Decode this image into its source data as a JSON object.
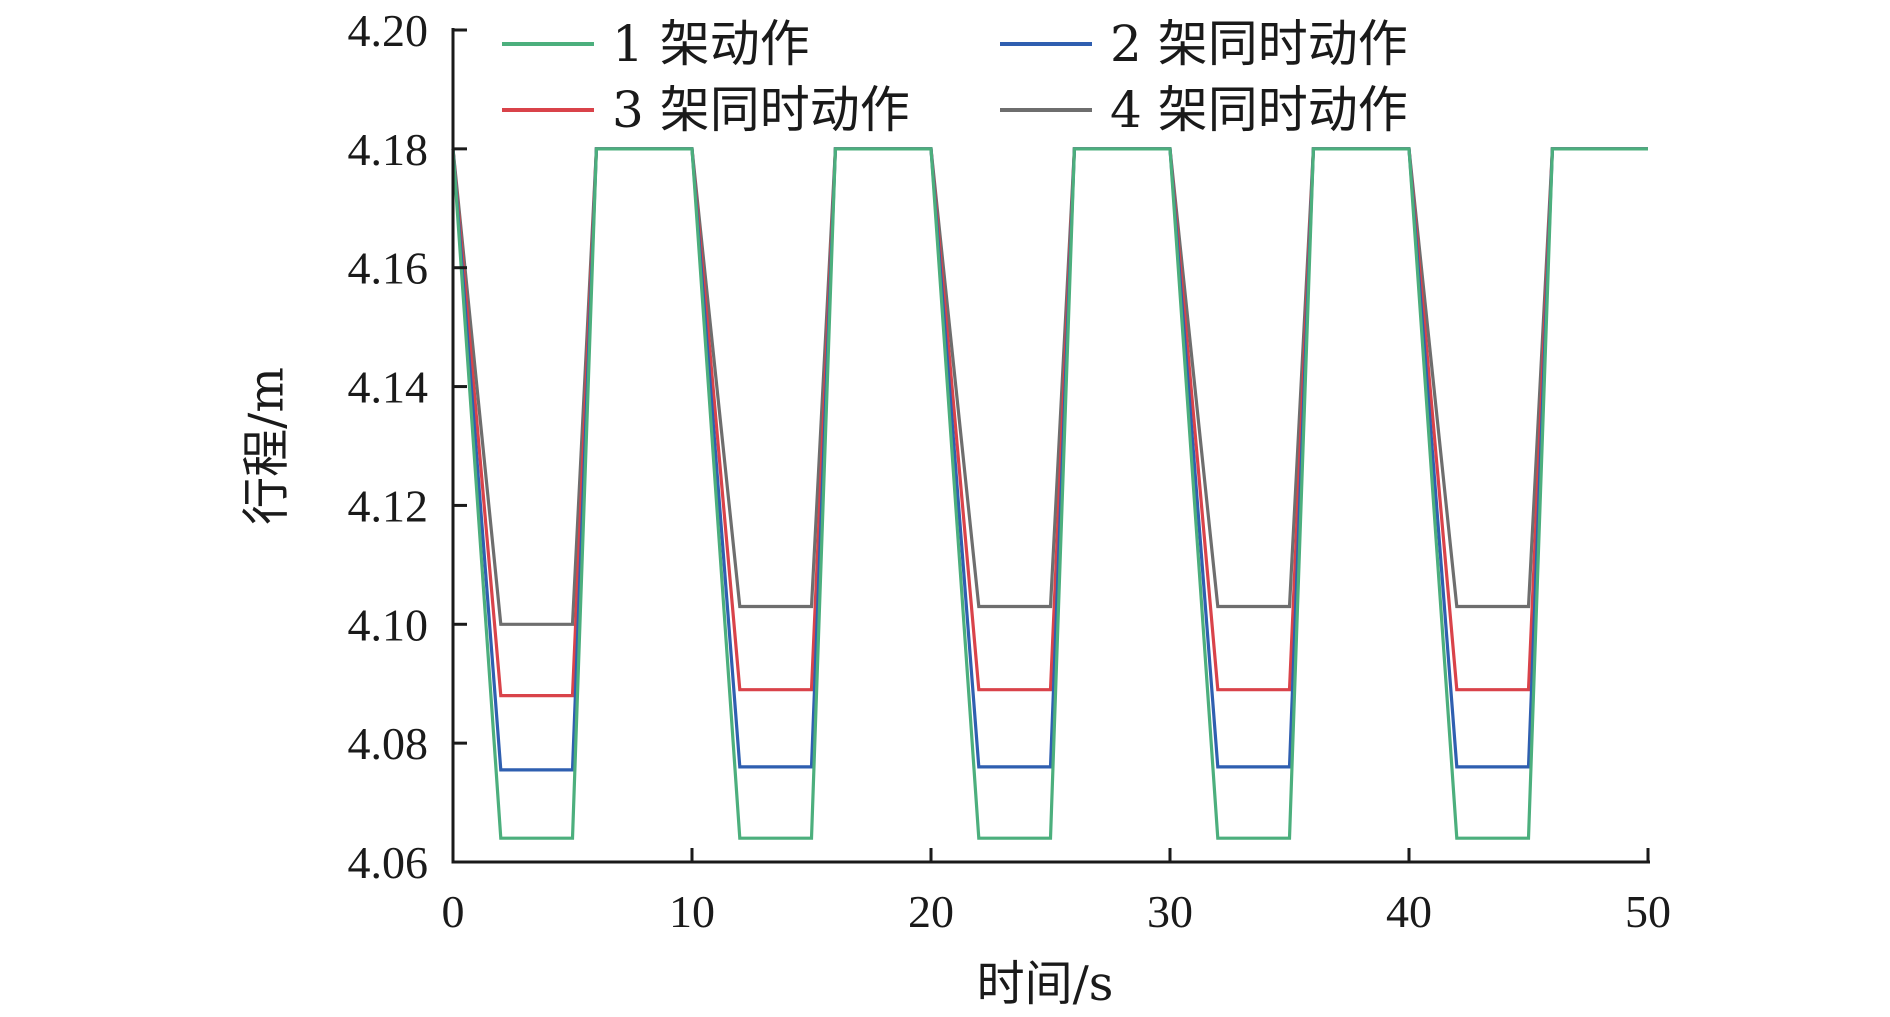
{
  "chart_data": {
    "type": "line",
    "xlabel": "时间/s",
    "ylabel": "行程/m",
    "xlim": [
      0,
      50
    ],
    "ylim": [
      4.06,
      4.2
    ],
    "x_ticks": [
      "0",
      "10",
      "20",
      "30",
      "40",
      "50"
    ],
    "y_ticks": [
      "4.06",
      "4.08",
      "4.10",
      "4.12",
      "4.14",
      "4.16",
      "4.18",
      "4.20"
    ],
    "grid": false,
    "legend_position": "top",
    "series": [
      {
        "name": "1 架动作",
        "color": "#4caf7d",
        "x": [
          0,
          2,
          5,
          6,
          10,
          12,
          15,
          16,
          20,
          22,
          25,
          26,
          30,
          32,
          35,
          36,
          40,
          42,
          45,
          46,
          50
        ],
        "y": [
          4.18,
          4.064,
          4.064,
          4.18,
          4.18,
          4.064,
          4.064,
          4.18,
          4.18,
          4.064,
          4.064,
          4.18,
          4.18,
          4.064,
          4.064,
          4.18,
          4.18,
          4.064,
          4.064,
          4.18,
          4.18
        ]
      },
      {
        "name": "2 架同时动作",
        "color": "#2f5fb0",
        "x": [
          0,
          2,
          5,
          6,
          10,
          12,
          15,
          16,
          20,
          22,
          25,
          26,
          30,
          32,
          35,
          36,
          40,
          42,
          45,
          46,
          50
        ],
        "y": [
          4.18,
          4.0755,
          4.0755,
          4.18,
          4.18,
          4.076,
          4.076,
          4.18,
          4.18,
          4.076,
          4.076,
          4.18,
          4.18,
          4.076,
          4.076,
          4.18,
          4.18,
          4.076,
          4.076,
          4.18,
          4.18
        ]
      },
      {
        "name": "3 架同时动作",
        "color": "#d9434a",
        "x": [
          0,
          2,
          5,
          6,
          10,
          12,
          15,
          16,
          20,
          22,
          25,
          26,
          30,
          32,
          35,
          36,
          40,
          42,
          45,
          46,
          50
        ],
        "y": [
          4.18,
          4.088,
          4.088,
          4.18,
          4.18,
          4.089,
          4.089,
          4.18,
          4.18,
          4.089,
          4.089,
          4.18,
          4.18,
          4.089,
          4.089,
          4.18,
          4.18,
          4.089,
          4.089,
          4.18,
          4.18
        ]
      },
      {
        "name": "4 架同时动作",
        "color": "#6e6e6e",
        "x": [
          0,
          2,
          5,
          6,
          10,
          12,
          15,
          16,
          20,
          22,
          25,
          26,
          30,
          32,
          35,
          36,
          40,
          42,
          45,
          46,
          50
        ],
        "y": [
          4.18,
          4.1,
          4.1,
          4.18,
          4.18,
          4.103,
          4.103,
          4.18,
          4.18,
          4.103,
          4.103,
          4.18,
          4.18,
          4.103,
          4.103,
          4.18,
          4.18,
          4.103,
          4.103,
          4.18,
          4.18
        ]
      }
    ]
  }
}
